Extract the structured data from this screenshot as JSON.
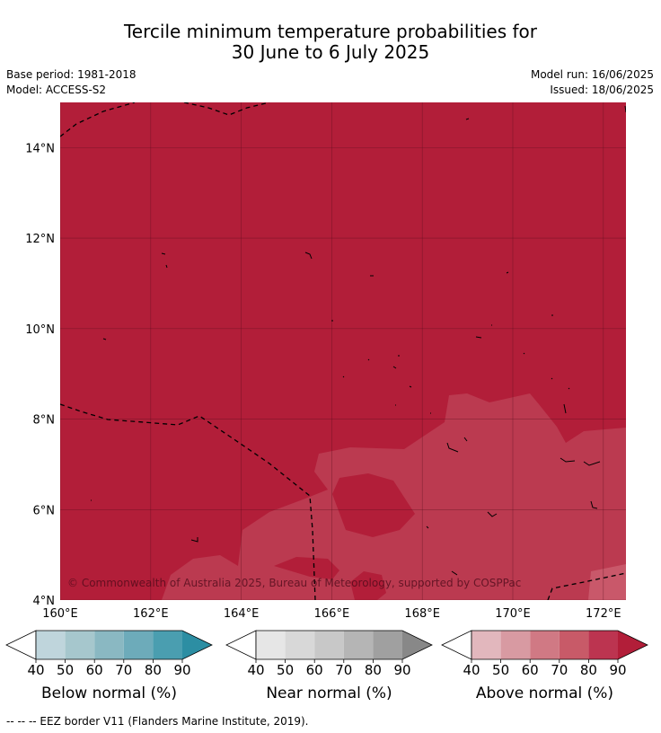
{
  "title": {
    "line1": "Tercile minimum temperature probabilities for",
    "line2": "30 June to 6 July 2025"
  },
  "info": {
    "base_period": "Base period: 1981-2018",
    "model": "Model: ACCESS-S2",
    "model_run": "Model run: 16/06/2025",
    "issued": "Issued: 18/06/2025"
  },
  "map": {
    "lon_ticks": [
      "160°E",
      "162°E",
      "164°E",
      "166°E",
      "168°E",
      "170°E",
      "172°E"
    ],
    "lat_ticks": [
      "14°N",
      "12°N",
      "10°N",
      "8°N",
      "6°N",
      "4°N"
    ],
    "lon_range": [
      160,
      172.5
    ],
    "lat_range": [
      4,
      15
    ],
    "copyright": "© Commonwealth of Australia 2025, Bureau of Meteorology, supported by COSPPac",
    "colors": {
      "above_80_90": "#b21e39",
      "above_70_80": "#bb3a50",
      "above_60_70": "#c9586a"
    }
  },
  "colorbars": [
    {
      "label": "Below normal (%)",
      "ticks": [
        "40",
        "50",
        "60",
        "70",
        "80",
        "90"
      ],
      "colors": [
        "#bfd5dc",
        "#a6c7cd",
        "#8ab8c2",
        "#6dabba",
        "#4a9eb0",
        "#2c8ea3"
      ]
    },
    {
      "label": "Near normal (%)",
      "ticks": [
        "40",
        "50",
        "60",
        "70",
        "80",
        "90"
      ],
      "colors": [
        "#e6e6e6",
        "#d8d8d8",
        "#c8c8c8",
        "#b5b5b5",
        "#a0a0a0",
        "#888888"
      ]
    },
    {
      "label": "Above normal (%)",
      "ticks": [
        "40",
        "50",
        "60",
        "70",
        "80",
        "90"
      ],
      "colors": [
        "#e2b7bd",
        "#d89aa2",
        "#d07984",
        "#c85a68",
        "#bc3450",
        "#b21e39"
      ]
    }
  ],
  "footnote": "--  --  -- EEZ border V11 (Flanders Marine Institute, 2019)."
}
